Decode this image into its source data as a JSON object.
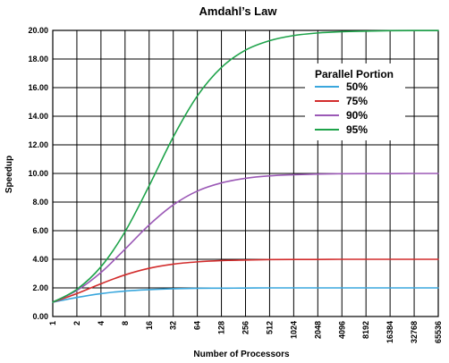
{
  "chart_data": {
    "type": "line",
    "title": "Amdahl’s Law",
    "xlabel": "Number of Processors",
    "ylabel": "Speedup",
    "x_scale": "log2",
    "x": [
      1,
      2,
      4,
      8,
      16,
      32,
      64,
      128,
      256,
      512,
      1024,
      2048,
      4096,
      8192,
      16384,
      32768,
      65536
    ],
    "x_tick_labels": [
      "1",
      "2",
      "4",
      "8",
      "16",
      "32",
      "64",
      "128",
      "256",
      "512",
      "1024",
      "2048",
      "4096",
      "8192",
      "16384",
      "32768",
      "65536"
    ],
    "ylim": [
      0,
      20
    ],
    "y_ticks": [
      0,
      2,
      4,
      6,
      8,
      10,
      12,
      14,
      16,
      18,
      20
    ],
    "y_tick_labels": [
      "0.00",
      "2.00",
      "4.00",
      "6.00",
      "8.00",
      "10.00",
      "12.00",
      "14.00",
      "16.00",
      "18.00",
      "20.00"
    ],
    "grid": true,
    "legend_title": "Parallel Portion",
    "legend_position": "top-right",
    "series": [
      {
        "name": "50%",
        "color": "#3aa7dd",
        "values": [
          1.0,
          1.33,
          1.6,
          1.78,
          1.88,
          1.94,
          1.97,
          1.98,
          1.99,
          2.0,
          2.0,
          2.0,
          2.0,
          2.0,
          2.0,
          2.0,
          2.0
        ]
      },
      {
        "name": "75%",
        "color": "#d22c2c",
        "values": [
          1.0,
          1.6,
          2.29,
          2.91,
          3.37,
          3.66,
          3.82,
          3.91,
          3.95,
          3.98,
          3.99,
          3.99,
          4.0,
          4.0,
          4.0,
          4.0,
          4.0
        ]
      },
      {
        "name": "90%",
        "color": "#9b59b6",
        "values": [
          1.0,
          1.82,
          3.08,
          4.71,
          6.4,
          7.8,
          8.77,
          9.34,
          9.66,
          9.83,
          9.91,
          9.96,
          9.98,
          9.99,
          9.99,
          10.0,
          10.0
        ]
      },
      {
        "name": "95%",
        "color": "#1ea34a",
        "values": [
          1.0,
          1.9,
          3.48,
          5.93,
          9.14,
          12.55,
          15.42,
          17.41,
          18.62,
          19.28,
          19.64,
          19.82,
          19.91,
          19.95,
          19.98,
          19.99,
          19.99
        ]
      }
    ]
  }
}
